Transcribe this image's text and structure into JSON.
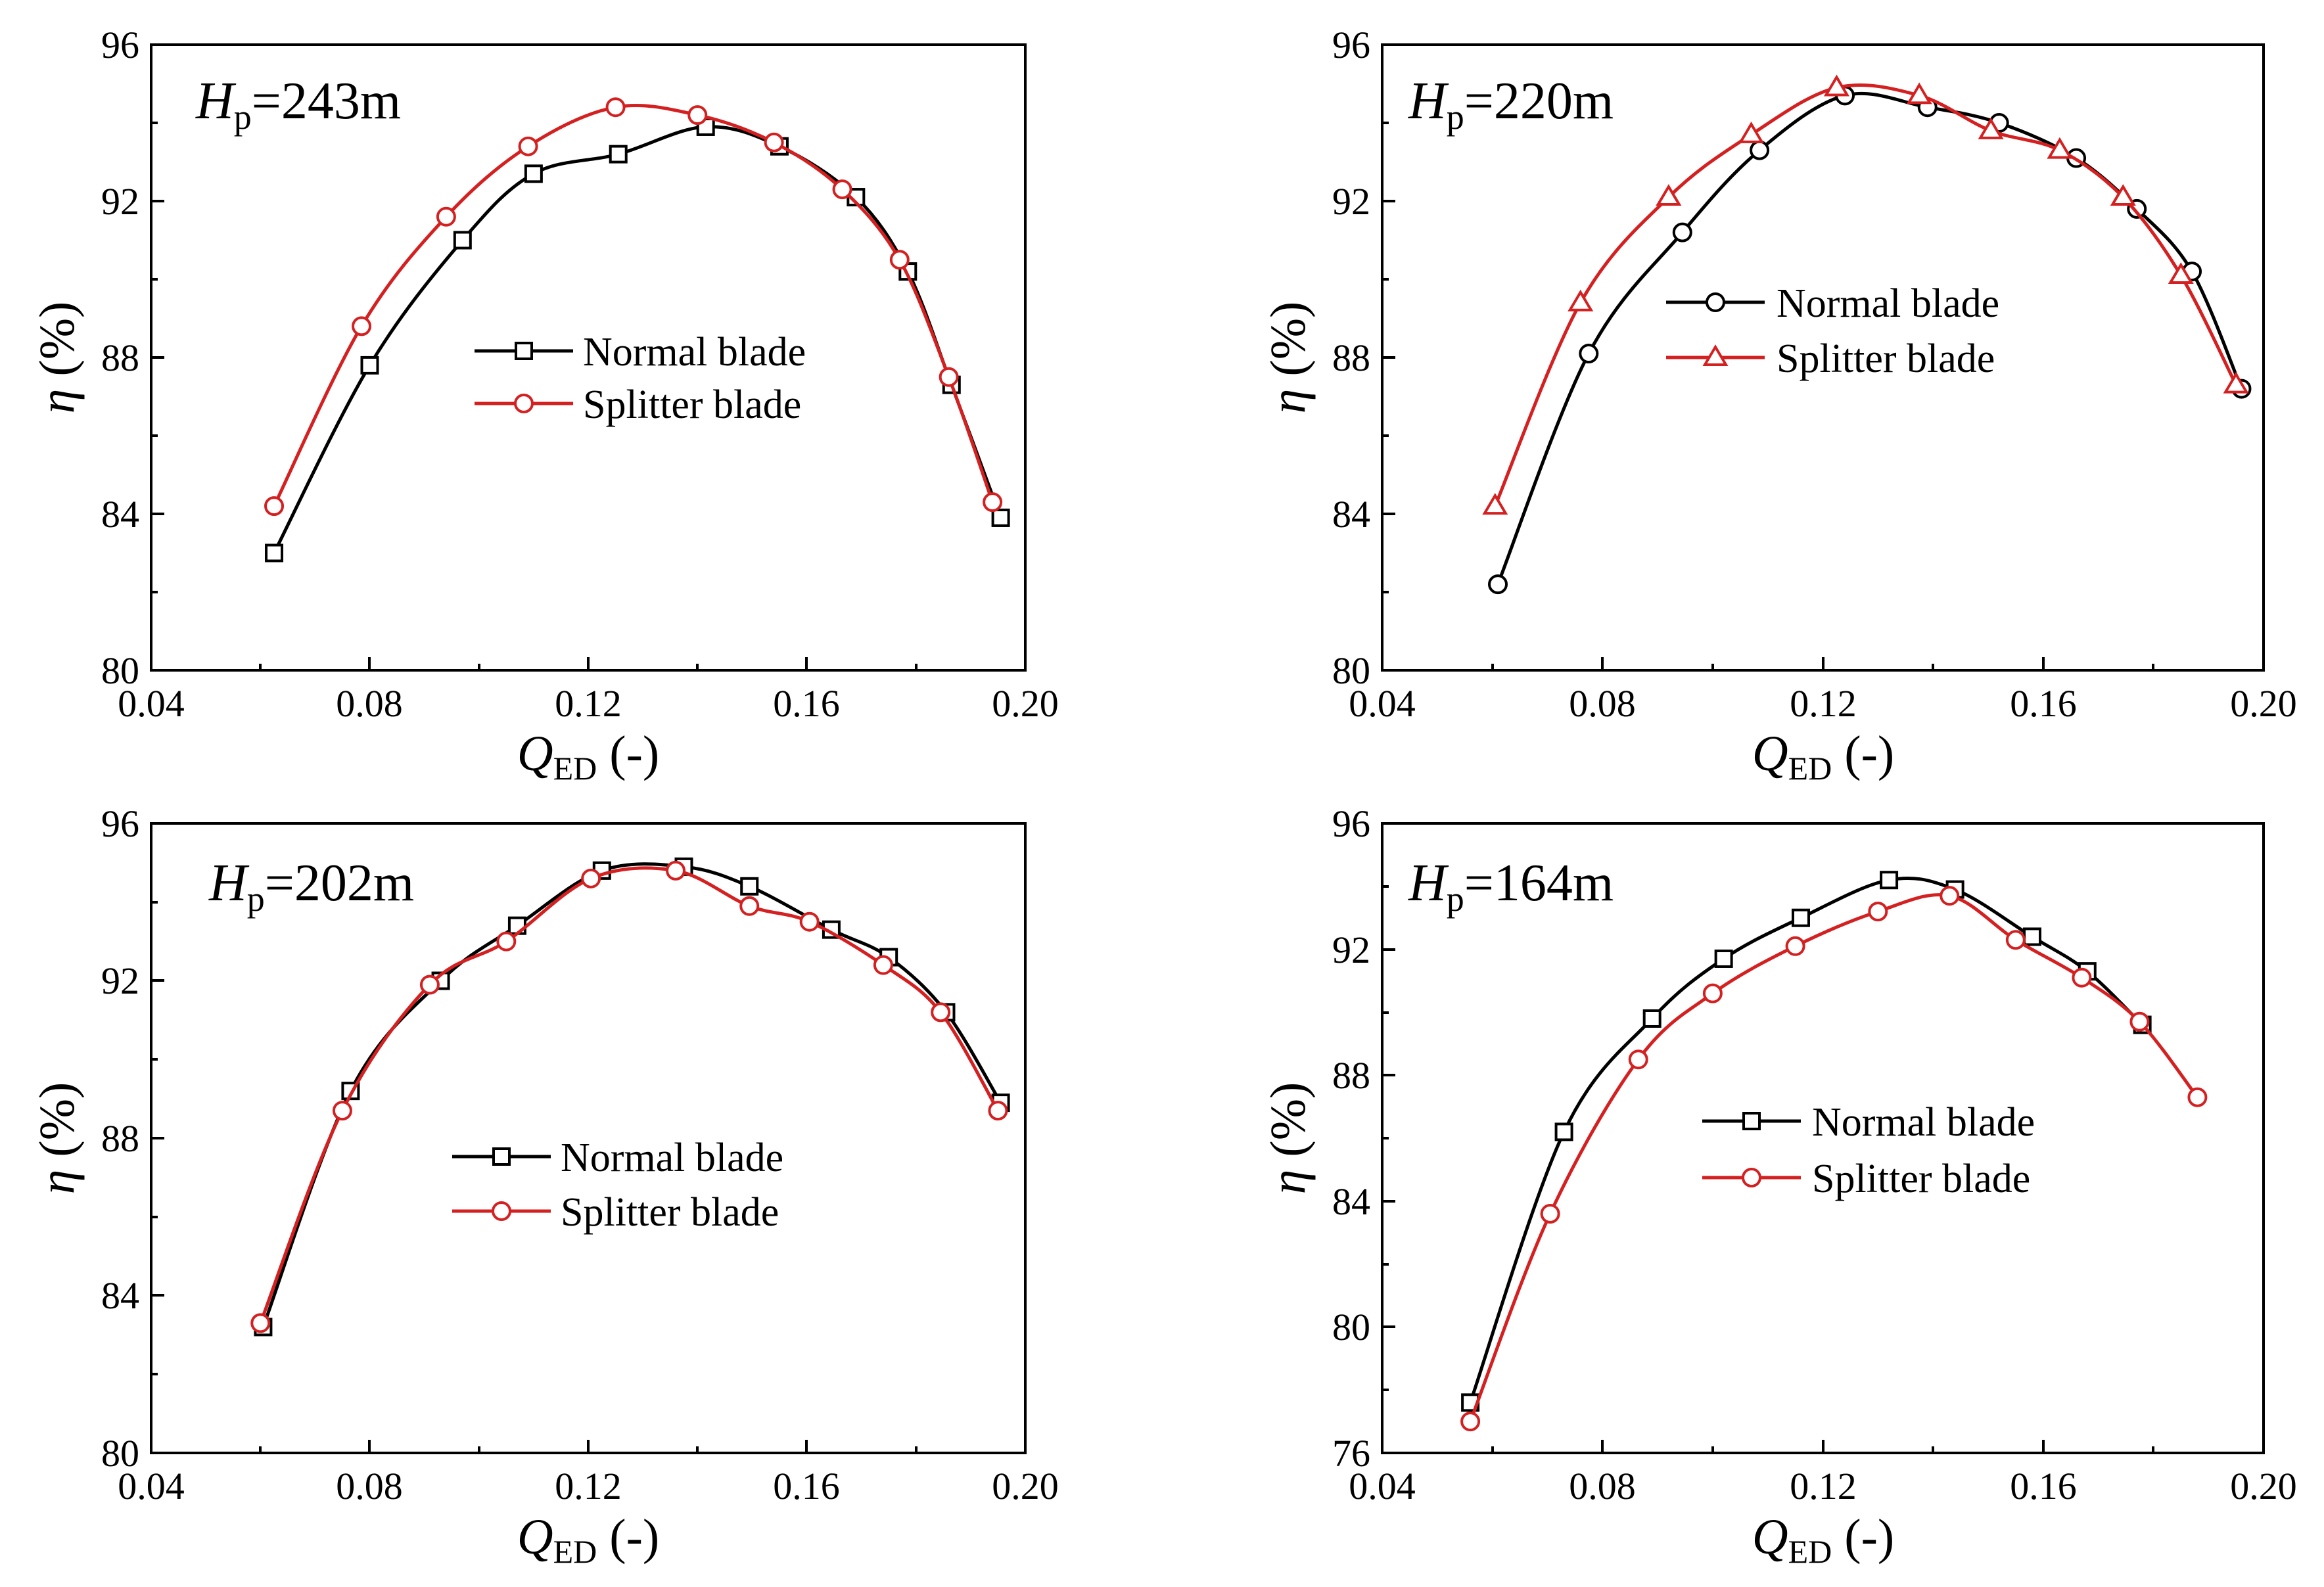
{
  "figure": {
    "series_styles": [
      {
        "color": "#000000"
      },
      {
        "color": "#d42020"
      }
    ]
  },
  "chart_data": [
    {
      "type": "line",
      "title": {
        "main": "H",
        "sub": "p",
        "rest": "=243m"
      },
      "xlabel": {
        "main": "Q",
        "sub": "ED",
        "rest": " (-)"
      },
      "ylabel": {
        "main": "η",
        "rest": " (%)"
      },
      "xlim": [
        0.04,
        0.2
      ],
      "ylim": [
        80,
        96
      ],
      "xticks": [
        "0.04",
        "0.08",
        "0.12",
        "0.16",
        "0.20"
      ],
      "yticks": [
        "80",
        "84",
        "88",
        "92",
        "96"
      ],
      "legend_position": "center",
      "series": [
        {
          "name": "Normal blade",
          "marker": "square",
          "color": "#000000",
          "x": [
            0.0625,
            0.08,
            0.097,
            0.11,
            0.1255,
            0.1415,
            0.155,
            0.169,
            0.1785,
            0.1865,
            0.1955
          ],
          "y": [
            83.0,
            87.8,
            91.0,
            92.7,
            93.2,
            93.9,
            93.4,
            92.1,
            90.2,
            87.3,
            83.9
          ]
        },
        {
          "name": "Splitter blade",
          "marker": "circle",
          "color": "#d42020",
          "x": [
            0.0625,
            0.0785,
            0.094,
            0.109,
            0.125,
            0.14,
            0.154,
            0.1665,
            0.177,
            0.186,
            0.194
          ],
          "y": [
            84.2,
            88.8,
            91.6,
            93.4,
            94.4,
            94.2,
            93.5,
            92.3,
            90.5,
            87.5,
            84.3
          ]
        }
      ]
    },
    {
      "type": "line",
      "title": {
        "main": "H",
        "sub": "p",
        "rest": "=220m"
      },
      "xlabel": {
        "main": "Q",
        "sub": "ED",
        "rest": " (-)"
      },
      "ylabel": {
        "main": "η",
        "rest": " (%)"
      },
      "xlim": [
        0.04,
        0.2
      ],
      "ylim": [
        80,
        96
      ],
      "xticks": [
        "0.04",
        "0.08",
        "0.12",
        "0.16",
        "0.20"
      ],
      "yticks": [
        "80",
        "84",
        "88",
        "92",
        "96"
      ],
      "legend_position": "top-center",
      "series": [
        {
          "name": "Normal blade",
          "marker": "circle",
          "color": "#000000",
          "x": [
            0.061,
            0.0775,
            0.0945,
            0.1085,
            0.124,
            0.139,
            0.152,
            0.166,
            0.177,
            0.187,
            0.196
          ],
          "y": [
            82.2,
            88.1,
            91.2,
            93.3,
            94.7,
            94.4,
            94.0,
            93.1,
            91.8,
            90.2,
            87.2
          ]
        },
        {
          "name": "Splitter blade",
          "marker": "triangle",
          "color": "#d42020",
          "x": [
            0.0605,
            0.076,
            0.092,
            0.107,
            0.1225,
            0.1375,
            0.1505,
            0.163,
            0.1745,
            0.185,
            0.195
          ],
          "y": [
            84.2,
            89.4,
            92.1,
            93.7,
            94.9,
            94.7,
            93.8,
            93.3,
            92.1,
            90.1,
            87.3
          ]
        }
      ]
    },
    {
      "type": "line",
      "title": {
        "main": "H",
        "sub": "p",
        "rest": "=202m"
      },
      "xlabel": {
        "main": "Q",
        "sub": "ED",
        "rest": " (-)"
      },
      "ylabel": {
        "main": "η",
        "rest": " (%)"
      },
      "xlim": [
        0.04,
        0.2
      ],
      "ylim": [
        80,
        96
      ],
      "xticks": [
        "0.04",
        "0.08",
        "0.12",
        "0.16",
        "0.20"
      ],
      "yticks": [
        "80",
        "84",
        "88",
        "92",
        "96"
      ],
      "legend_position": "center",
      "series": [
        {
          "name": "Normal blade",
          "marker": "square",
          "color": "#000000",
          "x": [
            0.0605,
            0.0765,
            0.093,
            0.107,
            0.1225,
            0.1375,
            0.1495,
            0.1645,
            0.175,
            0.1855,
            0.1955
          ],
          "y": [
            83.2,
            89.2,
            92.0,
            93.4,
            94.8,
            94.9,
            94.4,
            93.3,
            92.6,
            91.2,
            88.9
          ]
        },
        {
          "name": "Splitter blade",
          "marker": "circle",
          "color": "#d42020",
          "x": [
            0.06,
            0.075,
            0.091,
            0.105,
            0.1205,
            0.136,
            0.1495,
            0.1605,
            0.174,
            0.1845,
            0.195
          ],
          "y": [
            83.3,
            88.7,
            91.9,
            93.0,
            94.6,
            94.8,
            93.9,
            93.5,
            92.4,
            91.2,
            88.7
          ]
        }
      ]
    },
    {
      "type": "line",
      "title": {
        "main": "H",
        "sub": "p",
        "rest": "=164m"
      },
      "xlabel": {
        "main": "Q",
        "sub": "ED",
        "rest": " (-)"
      },
      "ylabel": {
        "main": "η",
        "rest": " (%)"
      },
      "xlim": [
        0.04,
        0.2
      ],
      "ylim": [
        76,
        96
      ],
      "xticks": [
        "0.04",
        "0.08",
        "0.12",
        "0.16",
        "0.20"
      ],
      "yticks": [
        "76",
        "80",
        "84",
        "88",
        "92",
        "96"
      ],
      "legend_position": "center",
      "series": [
        {
          "name": "Normal blade",
          "marker": "square",
          "color": "#000000",
          "x": [
            0.056,
            0.073,
            0.089,
            0.102,
            0.116,
            0.132,
            0.144,
            0.158,
            0.168,
            0.178
          ],
          "y": [
            77.6,
            86.2,
            89.8,
            91.7,
            93.0,
            94.2,
            93.9,
            92.4,
            91.3,
            89.6
          ]
        },
        {
          "name": "Splitter blade",
          "marker": "circle",
          "color": "#d42020",
          "x": [
            0.056,
            0.0705,
            0.0865,
            0.1,
            0.115,
            0.13,
            0.143,
            0.155,
            0.167,
            0.1775,
            0.188
          ],
          "y": [
            77.0,
            83.6,
            88.5,
            90.6,
            92.1,
            93.2,
            93.7,
            92.3,
            91.1,
            89.7,
            87.3
          ]
        }
      ]
    }
  ]
}
